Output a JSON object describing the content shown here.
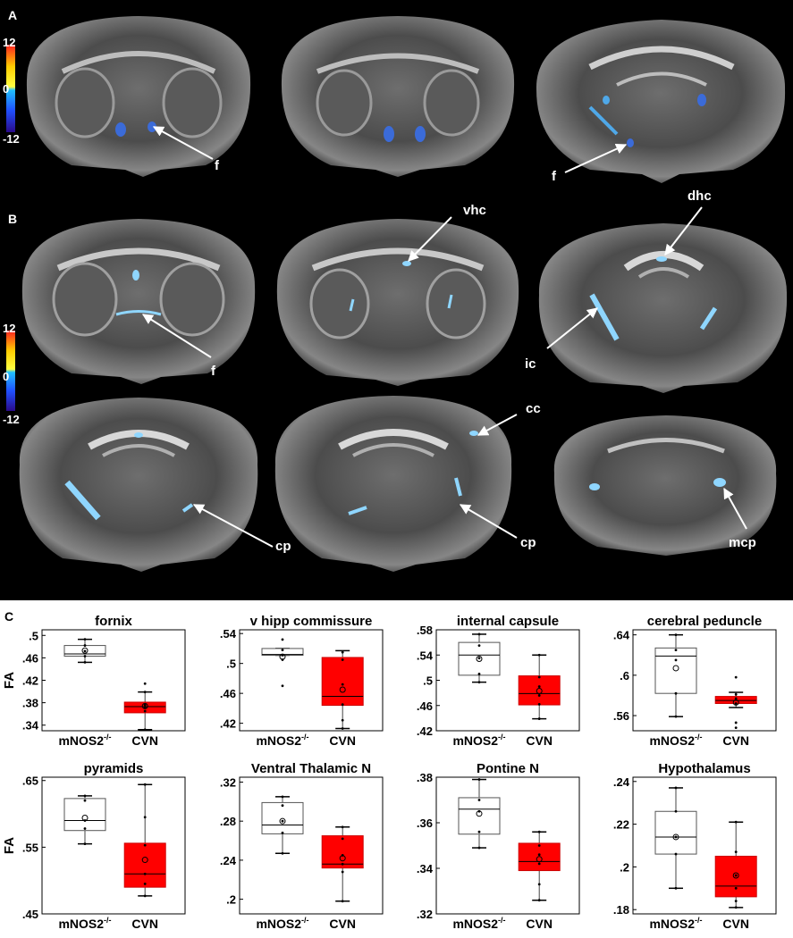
{
  "panels": {
    "a": "A",
    "b": "B",
    "c": "C"
  },
  "colorbar": {
    "ticks": [
      "12",
      "0",
      "-12"
    ]
  },
  "annotations": {
    "a": [
      "f",
      "f"
    ],
    "b": [
      "vhc",
      "dhc",
      "f",
      "ic",
      "cc",
      "cp",
      "cp",
      "mcp"
    ]
  },
  "fa_label": "FA",
  "groups": [
    "mNOS2",
    "CVN"
  ],
  "group_superscript": "-/-",
  "colors": {
    "mnos2_box": "#ffffff",
    "cvn_box": "#ff0000",
    "background": "#000000"
  },
  "chart_data": [
    {
      "type": "box",
      "title": "fornix",
      "ylabel": "FA",
      "categories": [
        "mNOS2-/-",
        "CVN"
      ],
      "ylim": [
        0.33,
        0.51
      ],
      "yticks": [
        0.5,
        0.46,
        0.42,
        0.38,
        0.34
      ],
      "boxes": [
        {
          "q1": 0.463,
          "median": 0.467,
          "q3": 0.482,
          "whisker_low": 0.452,
          "whisker_high": 0.493,
          "mean": 0.473,
          "points": [
            0.452,
            0.463,
            0.472,
            0.482,
            0.493
          ]
        },
        {
          "q1": 0.362,
          "median": 0.373,
          "q3": 0.381,
          "whisker_low": 0.332,
          "whisker_high": 0.399,
          "mean": 0.374,
          "points": [
            0.332,
            0.365,
            0.372,
            0.376,
            0.399,
            0.414
          ]
        }
      ]
    },
    {
      "type": "box",
      "title": "v hipp commissure",
      "ylabel": "",
      "categories": [
        "mNOS2-/-",
        "CVN"
      ],
      "ylim": [
        0.41,
        0.545
      ],
      "yticks": [
        0.54,
        0.5,
        0.46,
        0.42
      ],
      "boxes": [
        {
          "q1": 0.511,
          "median": 0.512,
          "q3": 0.52,
          "whisker_low": 0.511,
          "whisker_high": 0.52,
          "mean": 0.509,
          "points": [
            0.47,
            0.505,
            0.511,
            0.518,
            0.532
          ]
        },
        {
          "q1": 0.444,
          "median": 0.456,
          "q3": 0.508,
          "whisker_low": 0.413,
          "whisker_high": 0.517,
          "mean": 0.465,
          "points": [
            0.413,
            0.424,
            0.445,
            0.472,
            0.505,
            0.515
          ]
        }
      ]
    },
    {
      "type": "box",
      "title": "internal capsule",
      "ylabel": "",
      "categories": [
        "mNOS2-/-",
        "CVN"
      ],
      "ylim": [
        0.42,
        0.58
      ],
      "yticks": [
        0.58,
        0.54,
        0.5,
        0.46,
        0.42
      ],
      "boxes": [
        {
          "q1": 0.508,
          "median": 0.54,
          "q3": 0.56,
          "whisker_low": 0.497,
          "whisker_high": 0.573,
          "mean": 0.534,
          "points": [
            0.497,
            0.51,
            0.535,
            0.555,
            0.573
          ]
        },
        {
          "q1": 0.461,
          "median": 0.479,
          "q3": 0.507,
          "whisker_low": 0.439,
          "whisker_high": 0.54,
          "mean": 0.483,
          "points": [
            0.439,
            0.462,
            0.476,
            0.49,
            0.505,
            0.54
          ]
        }
      ]
    },
    {
      "type": "box",
      "title": "cerebral peduncle",
      "ylabel": "",
      "categories": [
        "mNOS2-/-",
        "CVN"
      ],
      "ylim": [
        0.545,
        0.645
      ],
      "yticks": [
        0.64,
        0.6,
        0.56
      ],
      "boxes": [
        {
          "q1": 0.582,
          "median": 0.619,
          "q3": 0.627,
          "whisker_low": 0.559,
          "whisker_high": 0.64,
          "mean": 0.607,
          "points": [
            0.559,
            0.582,
            0.615,
            0.625,
            0.64
          ]
        },
        {
          "q1": 0.572,
          "median": 0.575,
          "q3": 0.579,
          "whisker_low": 0.568,
          "whisker_high": 0.583,
          "mean": 0.573,
          "points": [
            0.548,
            0.553,
            0.572,
            0.577,
            0.581,
            0.598
          ]
        }
      ]
    },
    {
      "type": "box",
      "title": "pyramids",
      "ylabel": "FA",
      "categories": [
        "mNOS2-/-",
        "CVN"
      ],
      "ylim": [
        0.45,
        0.655
      ],
      "yticks": [
        0.65,
        0.55,
        0.45
      ],
      "boxes": [
        {
          "q1": 0.575,
          "median": 0.59,
          "q3": 0.623,
          "whisker_low": 0.555,
          "whisker_high": 0.627,
          "mean": 0.594,
          "points": [
            0.555,
            0.578,
            0.59,
            0.62,
            0.627
          ]
        },
        {
          "q1": 0.49,
          "median": 0.51,
          "q3": 0.556,
          "whisker_low": 0.477,
          "whisker_high": 0.644,
          "mean": 0.531,
          "points": [
            0.477,
            0.495,
            0.51,
            0.553,
            0.595,
            0.644
          ]
        }
      ]
    },
    {
      "type": "box",
      "title": "Ventral Thalamic N",
      "ylabel": "",
      "categories": [
        "mNOS2-/-",
        "CVN"
      ],
      "ylim": [
        0.185,
        0.325
      ],
      "yticks": [
        0.32,
        0.28,
        0.24,
        0.2
      ],
      "boxes": [
        {
          "q1": 0.267,
          "median": 0.276,
          "q3": 0.299,
          "whisker_low": 0.247,
          "whisker_high": 0.305,
          "mean": 0.28,
          "points": [
            0.247,
            0.268,
            0.28,
            0.296,
            0.305
          ]
        },
        {
          "q1": 0.232,
          "median": 0.236,
          "q3": 0.265,
          "whisker_low": 0.198,
          "whisker_high": 0.274,
          "mean": 0.242,
          "points": [
            0.198,
            0.228,
            0.236,
            0.245,
            0.262,
            0.274
          ]
        }
      ]
    },
    {
      "type": "box",
      "title": "Pontine N",
      "ylabel": "",
      "categories": [
        "mNOS2-/-",
        "CVN"
      ],
      "ylim": [
        0.32,
        0.38
      ],
      "yticks": [
        0.38,
        0.36,
        0.34,
        0.32
      ],
      "boxes": [
        {
          "q1": 0.355,
          "median": 0.366,
          "q3": 0.371,
          "whisker_low": 0.349,
          "whisker_high": 0.379,
          "mean": 0.364,
          "points": [
            0.349,
            0.356,
            0.365,
            0.37,
            0.379
          ]
        },
        {
          "q1": 0.339,
          "median": 0.343,
          "q3": 0.351,
          "whisker_low": 0.326,
          "whisker_high": 0.356,
          "mean": 0.344,
          "points": [
            0.326,
            0.333,
            0.342,
            0.346,
            0.35,
            0.356
          ]
        }
      ]
    },
    {
      "type": "box",
      "title": "Hypothalamus",
      "ylabel": "",
      "categories": [
        "mNOS2-/-",
        "CVN"
      ],
      "ylim": [
        0.178,
        0.242
      ],
      "yticks": [
        0.24,
        0.22,
        0.2,
        0.18
      ],
      "boxes": [
        {
          "q1": 0.206,
          "median": 0.214,
          "q3": 0.226,
          "whisker_low": 0.19,
          "whisker_high": 0.237,
          "mean": 0.214,
          "points": [
            0.19,
            0.206,
            0.214,
            0.226,
            0.237
          ]
        },
        {
          "q1": 0.186,
          "median": 0.191,
          "q3": 0.205,
          "whisker_low": 0.181,
          "whisker_high": 0.221,
          "mean": 0.196,
          "points": [
            0.181,
            0.184,
            0.19,
            0.196,
            0.207,
            0.221
          ]
        }
      ]
    }
  ]
}
